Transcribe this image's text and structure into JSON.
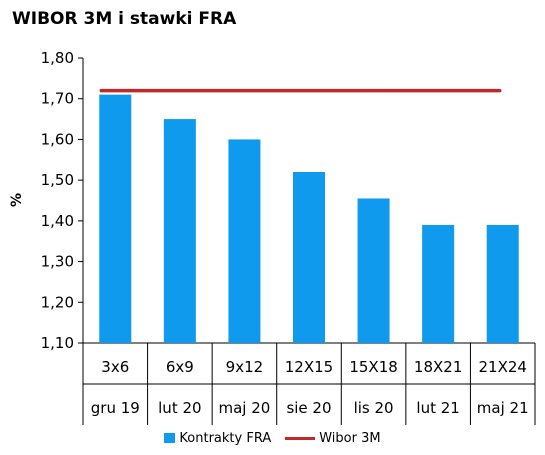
{
  "chart_data": {
    "type": "bar",
    "title": "WIBOR 3M i stawki FRA",
    "ylabel": "%",
    "ylim": [
      1.1,
      1.8
    ],
    "yticks": [
      "1,10",
      "1,20",
      "1,30",
      "1,40",
      "1,50",
      "1,60",
      "1,70",
      "1,80"
    ],
    "categories": [
      {
        "top": "3x6",
        "bottom": "gru 19"
      },
      {
        "top": "6x9",
        "bottom": "lut 20"
      },
      {
        "top": "9x12",
        "bottom": "maj 20"
      },
      {
        "top": "12X15",
        "bottom": "sie 20"
      },
      {
        "top": "15X18",
        "bottom": "lis 20"
      },
      {
        "top": "18X21",
        "bottom": "lut 21"
      },
      {
        "top": "21X24",
        "bottom": "maj 21"
      }
    ],
    "series": [
      {
        "name": "Kontrakty FRA",
        "type": "bar",
        "color": "#0f9aee",
        "values": [
          1.71,
          1.65,
          1.6,
          1.52,
          1.455,
          1.39,
          1.39
        ]
      },
      {
        "name": "Wibor 3M",
        "type": "line",
        "color": "#c0282a",
        "values": [
          1.72,
          1.72,
          1.72,
          1.72,
          1.72,
          1.72,
          1.72
        ]
      }
    ],
    "grid": false,
    "legend": "bottom"
  }
}
